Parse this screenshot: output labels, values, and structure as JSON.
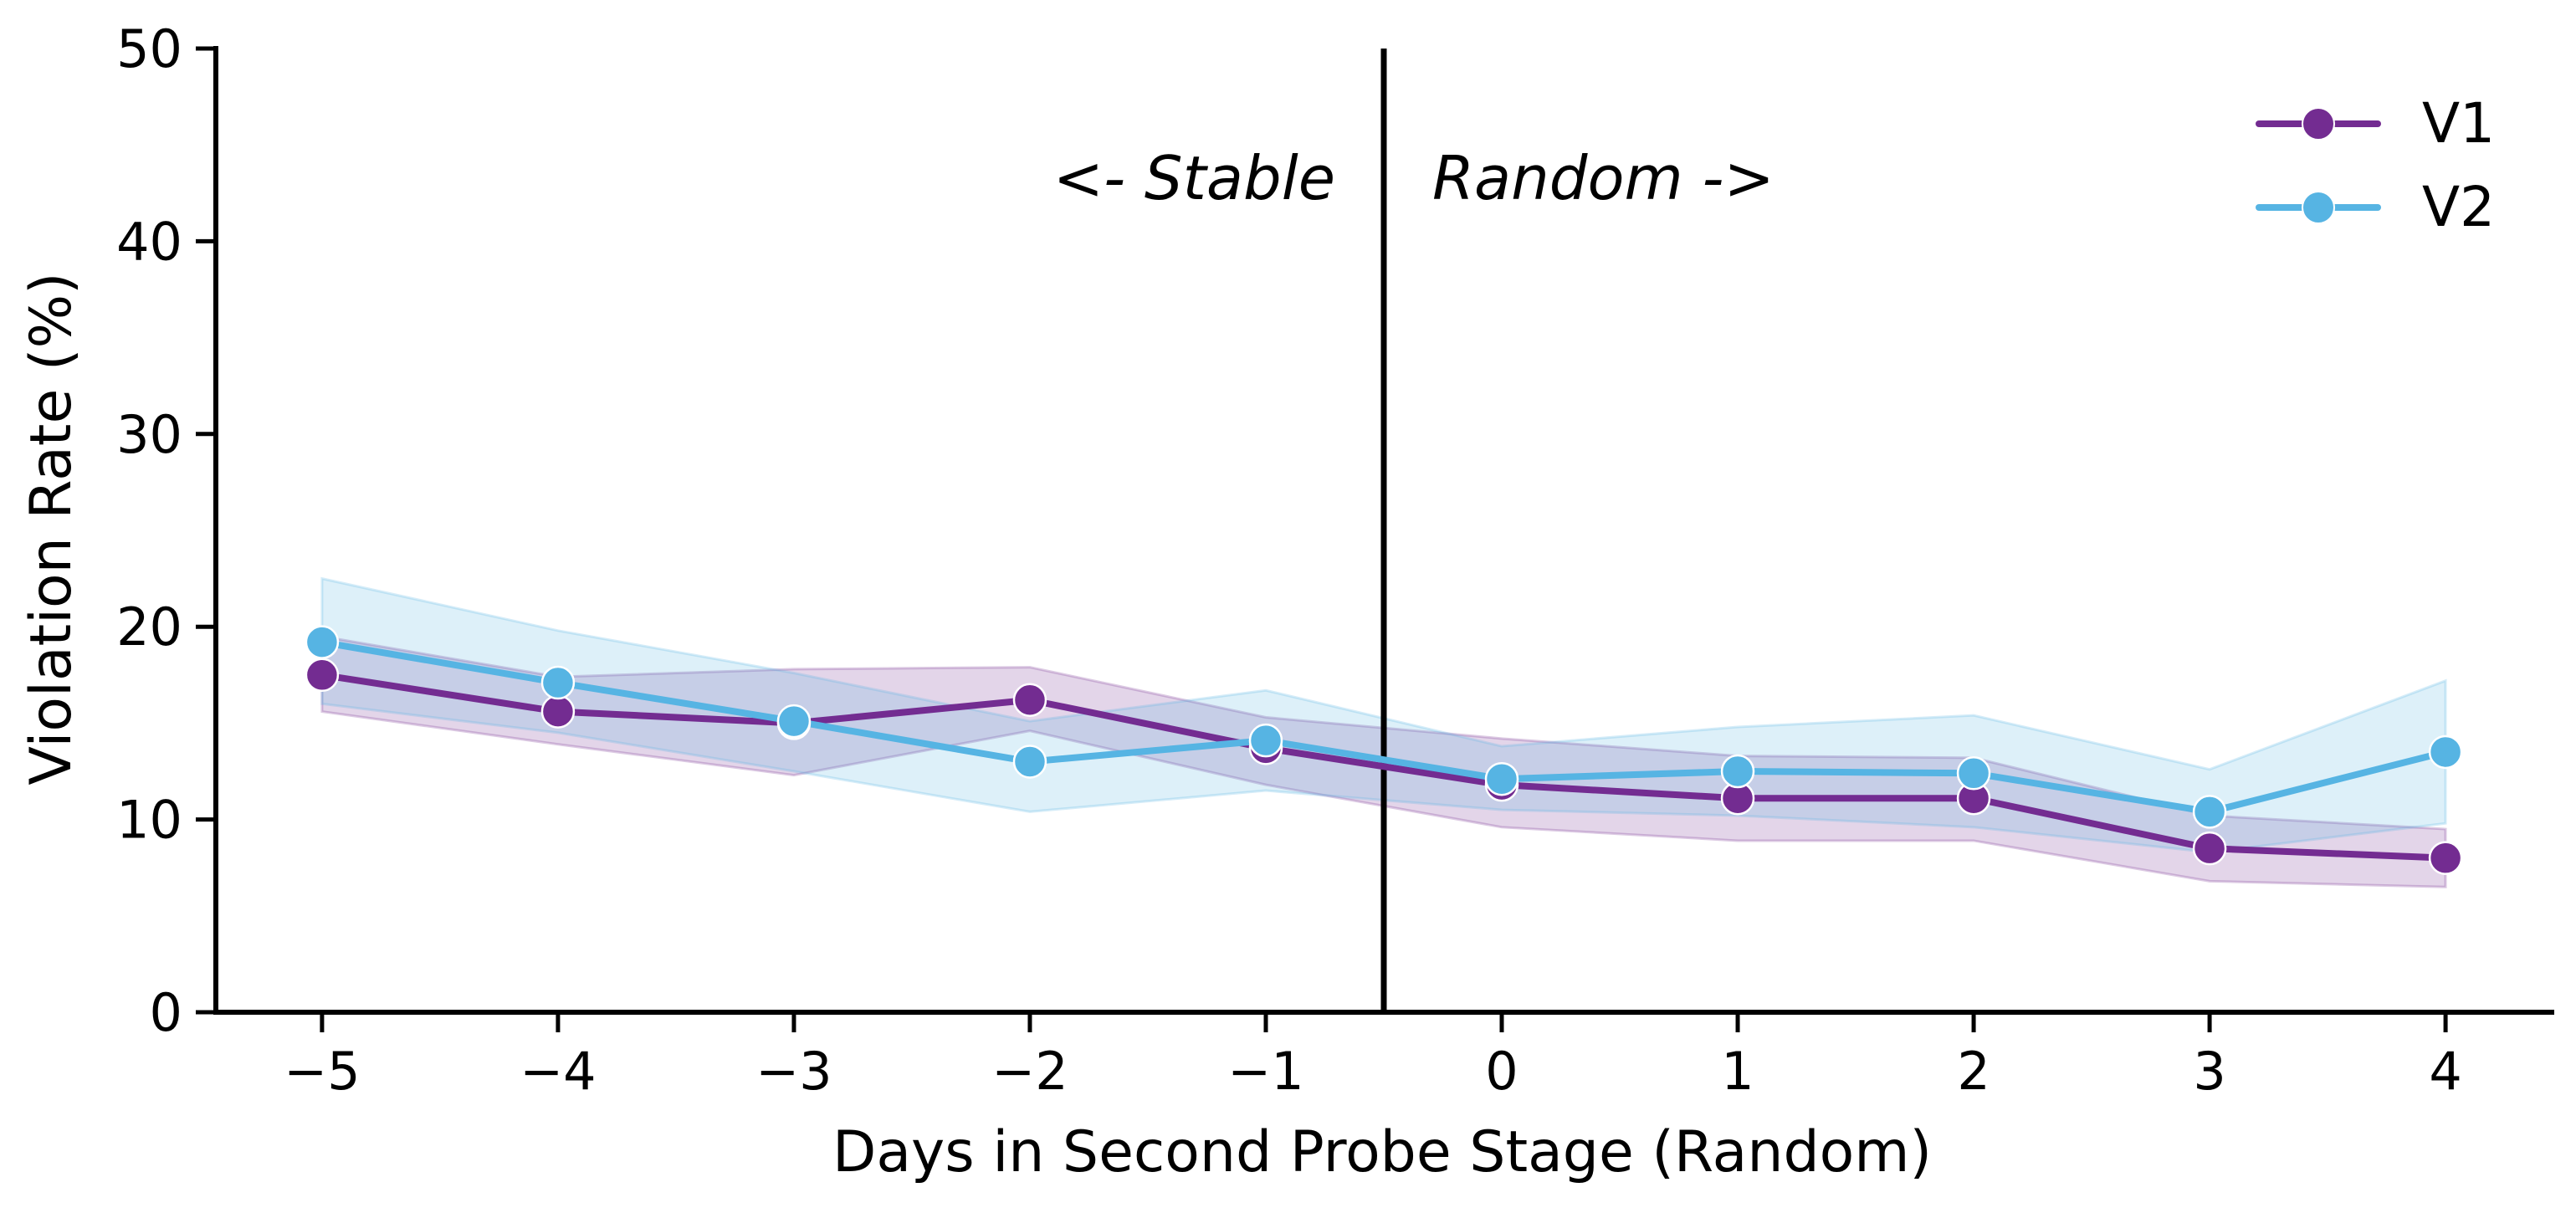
{
  "chart_data": {
    "type": "line",
    "xlabel": "Days in Second Probe Stage (Random)",
    "ylabel": "Violation Rate (%)",
    "xlim": [
      -5.45,
      4.45
    ],
    "ylim": [
      0,
      50
    ],
    "x": [
      -5,
      -4,
      -3,
      -2,
      -1,
      0,
      1,
      2,
      3,
      4
    ],
    "x_tick_labels": [
      "−5",
      "−4",
      "−3",
      "−2",
      "−1",
      "0",
      "1",
      "2",
      "3",
      "4"
    ],
    "y_ticks": [
      0,
      10,
      20,
      30,
      40,
      50
    ],
    "y_tick_labels": [
      "0",
      "10",
      "20",
      "30",
      "40",
      "50"
    ],
    "grid": false,
    "legend_position": "top-right",
    "divider_x": -0.5,
    "annotations": {
      "left": "<- Stable",
      "right": "Random ->"
    },
    "series": [
      {
        "name": "V1",
        "color": "#732c91",
        "values": [
          17.5,
          15.6,
          15.0,
          16.2,
          13.7,
          11.8,
          11.1,
          11.1,
          8.5,
          8.0
        ],
        "ci_low": [
          15.6,
          13.9,
          12.3,
          14.6,
          11.8,
          9.6,
          8.9,
          8.9,
          6.8,
          6.5
        ],
        "ci_high": [
          19.5,
          17.4,
          17.8,
          17.9,
          15.3,
          14.2,
          13.3,
          13.2,
          10.2,
          9.5
        ]
      },
      {
        "name": "V2",
        "color": "#56b4e3",
        "values": [
          19.2,
          17.1,
          15.1,
          13.0,
          14.1,
          12.1,
          12.5,
          12.4,
          10.4,
          13.5
        ],
        "ci_low": [
          16.0,
          14.5,
          12.5,
          10.4,
          11.5,
          10.5,
          10.2,
          9.6,
          8.3,
          9.8
        ],
        "ci_high": [
          22.5,
          19.8,
          17.6,
          15.1,
          16.7,
          13.8,
          14.8,
          15.4,
          12.6,
          17.2
        ]
      }
    ]
  }
}
